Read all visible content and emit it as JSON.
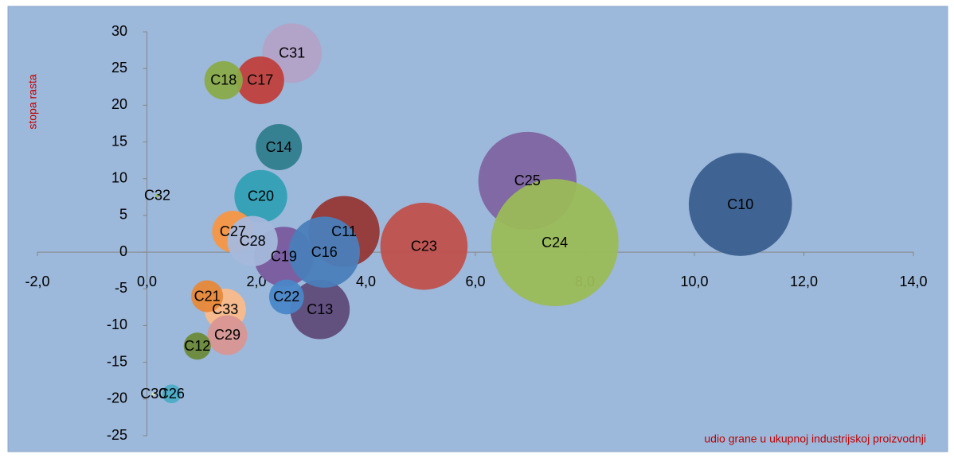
{
  "chart_data": {
    "type": "bubble",
    "y_label": "stopa rasta",
    "x_label": "udio grane u ukupnoj industrijskoj proizvodnji",
    "xlim": [
      -2,
      14
    ],
    "xticks": [
      {
        "value": -2,
        "label": "-2,0"
      },
      {
        "value": 0,
        "label": "0,0"
      },
      {
        "value": 2,
        "label": "2,0"
      },
      {
        "value": 4,
        "label": "4,0"
      },
      {
        "value": 6,
        "label": "6,0"
      },
      {
        "value": 8,
        "label": "8,0"
      },
      {
        "value": 10,
        "label": "10,0"
      },
      {
        "value": 12,
        "label": "12,0"
      },
      {
        "value": 14,
        "label": "14,0"
      }
    ],
    "ylim": [
      -25,
      30
    ],
    "yticks": [
      -25,
      -20,
      -15,
      -10,
      -5,
      0,
      5,
      10,
      15,
      20,
      25,
      30
    ],
    "series": [
      {
        "name": "C10",
        "color": "#3a5f8f",
        "x": 10.84,
        "y": 6.5,
        "size": 42
      },
      {
        "name": "C25",
        "color": "#8064a2",
        "x": 6.95,
        "y": 9.7,
        "size": 38
      },
      {
        "name": "C24",
        "color": "#9bbb59",
        "x": 7.45,
        "y": 1.3,
        "size": 64
      },
      {
        "name": "C23",
        "color": "#c0504d",
        "x": 5.06,
        "y": 0.8,
        "size": 30
      },
      {
        "name": "C11",
        "color": "#953735",
        "x": 3.6,
        "y": 2.8,
        "size": 20
      },
      {
        "name": "C13",
        "color": "#5f4a7a",
        "x": 3.16,
        "y": -7.8,
        "size": 14
      },
      {
        "name": "C19",
        "color": "#7a5a9e",
        "x": 2.5,
        "y": -0.6,
        "size": 14
      },
      {
        "name": "C16",
        "color": "#4a7ebb",
        "x": 3.24,
        "y": 0,
        "size": 20
      },
      {
        "name": "C31",
        "color": "#b3a2c7",
        "x": 2.65,
        "y": 27.1,
        "size": 14
      },
      {
        "name": "C20",
        "color": "#31a0b5",
        "x": 2.08,
        "y": 7.6,
        "size": 11
      },
      {
        "name": "C27",
        "color": "#f79646",
        "x": 1.57,
        "y": 2.8,
        "size": 6.8
      },
      {
        "name": "C28",
        "color": "#a5b8dc",
        "x": 1.93,
        "y": 1.5,
        "size": 10
      },
      {
        "name": "C17",
        "color": "#c0403d",
        "x": 2.07,
        "y": 23.4,
        "size": 9
      },
      {
        "name": "C14",
        "color": "#2f7d8e",
        "x": 2.41,
        "y": 14.3,
        "size": 8.4
      },
      {
        "name": "C33",
        "color": "#fab98a",
        "x": 1.43,
        "y": -7.8,
        "size": 6.8
      },
      {
        "name": "C29",
        "color": "#d99594",
        "x": 1.47,
        "y": -11.3,
        "size": 6.2
      },
      {
        "name": "C18",
        "color": "#8aaa4a",
        "x": 1.4,
        "y": 23.4,
        "size": 5.8
      },
      {
        "name": "C22",
        "color": "#4a86c8",
        "x": 2.55,
        "y": -6.1,
        "size": 4.8
      },
      {
        "name": "C21",
        "color": "#e8883a",
        "x": 1.1,
        "y": -6.0,
        "size": 4
      },
      {
        "name": "C12",
        "color": "#6b8a3a",
        "x": 0.92,
        "y": -12.8,
        "size": 2.9
      },
      {
        "name": "C26",
        "color": "#4bacc6",
        "x": 0.45,
        "y": -19.3,
        "size": 1.4
      },
      {
        "name": "C32",
        "color": "#9bbb59",
        "x": 0.19,
        "y": 7.7,
        "size": 0.05
      },
      {
        "name": "C30",
        "color": "#d7e4bd",
        "x": 0.12,
        "y": -19.3,
        "size": 0.05
      }
    ]
  }
}
